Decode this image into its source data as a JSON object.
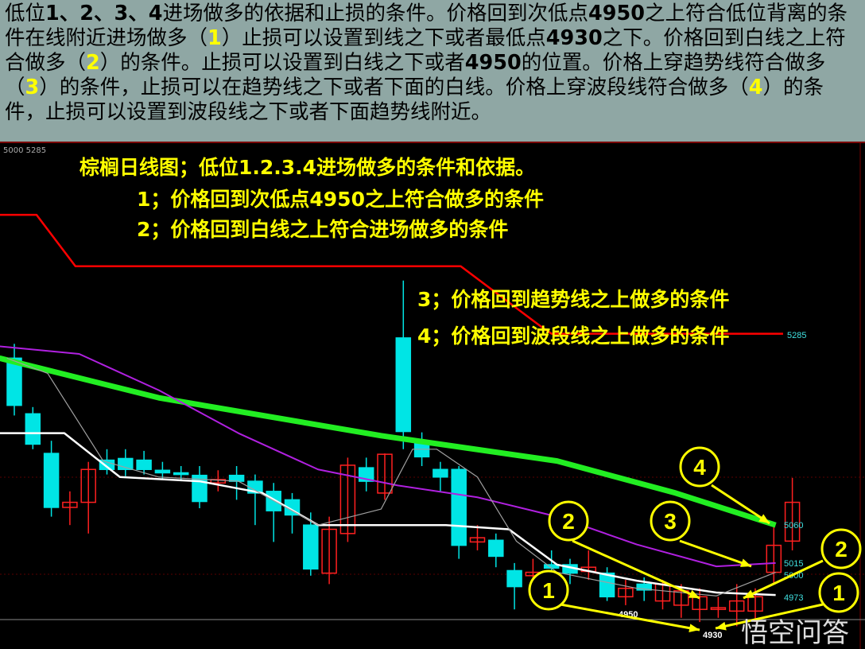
{
  "header": {
    "segments": [
      {
        "t": "低位"
      },
      {
        "t": "1、2、3、4",
        "b": 1
      },
      {
        "t": "进场做多的依据和止损的条件。价格回到次低点"
      },
      {
        "t": "4950",
        "b": 1
      },
      {
        "t": "之上符合低位背离的条件在线附近进场做多（"
      },
      {
        "t": "1",
        "h": 1
      },
      {
        "t": "）止损可以设置到线之下或者最低点"
      },
      {
        "t": "4930",
        "b": 1
      },
      {
        "t": "之下。价格回到白线之上符合做多（"
      },
      {
        "t": "2",
        "h": 1
      },
      {
        "t": "）的条件。止损可以设置到白线之下或者"
      },
      {
        "t": "4950",
        "b": 1
      },
      {
        "t": "的位置。价格上穿趋势线符合做多（"
      },
      {
        "t": "3",
        "h": 1
      },
      {
        "t": "）的条件，止损可以在趋势线之下或者下面的白线。价格上穿波段线符合做多（"
      },
      {
        "t": "4",
        "h": 1
      },
      {
        "t": "）的条件，止损可以设置到波段线之下或者下面趋势线附近。"
      }
    ]
  },
  "legend": "5000 5285",
  "annotations": {
    "title": "棕榈日线图；低位1.2.3.4进场做多的条件和依据。",
    "line1": "1；价格回到次低点4950之上符合做多的条件",
    "line2": "2；价格回到白线之上符合进场做多的条件",
    "line3": "3；价格回到趋势线之上做多的条件",
    "line4": "4；价格回到波段线之上做多的条件"
  },
  "watermark": "悟空问答",
  "chart_data": {
    "type": "candlestick",
    "ylim": [
      4913,
      5513
    ],
    "colors": {
      "up": "#ff2020",
      "down": "#00e5e5",
      "band_line": "#ff0000",
      "trend_line": "#22ee22",
      "purple_line": "#b020e0",
      "white_line": "#ffffff",
      "gray_line": "#a0a0a0",
      "annotation": "#ffff00"
    },
    "candles": [
      [
        5258,
        5275,
        5190,
        5202
      ],
      [
        5192,
        5200,
        5150,
        5156
      ],
      [
        5145,
        5160,
        5070,
        5081
      ],
      [
        5081,
        5100,
        5060,
        5087
      ],
      [
        5087,
        5135,
        5050,
        5126
      ],
      [
        5137,
        5150,
        5120,
        5126
      ],
      [
        5139,
        5150,
        5118,
        5126
      ],
      [
        5137,
        5148,
        5120,
        5126
      ],
      [
        5125,
        5135,
        5115,
        5122
      ],
      [
        5122,
        5130,
        5112,
        5120
      ],
      [
        5119,
        5130,
        5080,
        5088
      ],
      [
        5110,
        5125,
        5100,
        5114
      ],
      [
        5119,
        5130,
        5090,
        5112
      ],
      [
        5112,
        5120,
        5060,
        5098
      ],
      [
        5100,
        5110,
        5040,
        5077
      ],
      [
        5090,
        5098,
        5050,
        5072
      ],
      [
        5060,
        5075,
        5000,
        5008
      ],
      [
        5003,
        5070,
        4990,
        5055
      ],
      [
        5050,
        5140,
        5040,
        5131
      ],
      [
        5128,
        5140,
        5100,
        5112
      ],
      [
        5098,
        5145,
        5090,
        5144
      ],
      [
        5282,
        5350,
        5150,
        5171
      ],
      [
        5158,
        5170,
        5130,
        5141
      ],
      [
        5126,
        5135,
        5100,
        5117
      ],
      [
        5126,
        5130,
        5020,
        5036
      ],
      [
        5040,
        5060,
        5030,
        5045
      ],
      [
        5042,
        5050,
        5010,
        5023
      ],
      [
        5006,
        5015,
        4960,
        4987
      ],
      [
        5000,
        5020,
        4985,
        5004
      ],
      [
        5013,
        5030,
        5000,
        5009
      ],
      [
        5013,
        5020,
        4990,
        5003
      ],
      [
        5005,
        5030,
        4995,
        5010
      ],
      [
        5003,
        5010,
        4970,
        4975
      ],
      [
        4975,
        4995,
        4965,
        4985
      ],
      [
        4990,
        4998,
        4970,
        4983
      ],
      [
        4970,
        4995,
        4960,
        4990
      ],
      [
        4965,
        4990,
        4950,
        4982
      ],
      [
        4960,
        4985,
        4945,
        4975
      ],
      [
        4960,
        4975,
        4950,
        4962
      ],
      [
        4958,
        4990,
        4940,
        4970
      ],
      [
        4958,
        4985,
        4945,
        4975
      ],
      [
        5004,
        5060,
        4990,
        5036
      ],
      [
        5041,
        5116,
        5030,
        5087
      ]
    ],
    "lines": {
      "band_line": [
        [
          0.2,
          5428
        ],
        [
          2.2,
          5428
        ],
        [
          4.3,
          5367
        ],
        [
          25.1,
          5367
        ],
        [
          29.4,
          5296
        ],
        [
          30,
          5287
        ],
        [
          42.5,
          5287
        ]
      ],
      "trend_line": [
        [
          0.2,
          5258
        ],
        [
          8.8,
          5211
        ],
        [
          20.8,
          5166
        ],
        [
          30.3,
          5136
        ],
        [
          36.7,
          5098
        ],
        [
          42.1,
          5060
        ]
      ],
      "purple_line": [
        [
          0.2,
          5272
        ],
        [
          4.5,
          5263
        ],
        [
          8.8,
          5220
        ],
        [
          13.1,
          5169
        ],
        [
          17.4,
          5126
        ],
        [
          21.7,
          5107
        ],
        [
          26,
          5093
        ],
        [
          30.3,
          5070
        ],
        [
          34.6,
          5037
        ],
        [
          38.9,
          5011
        ],
        [
          42.1,
          5015
        ]
      ],
      "white_line": [
        [
          0.2,
          5169
        ],
        [
          3.7,
          5169
        ],
        [
          6.7,
          5117
        ],
        [
          11,
          5112
        ],
        [
          14.4,
          5098
        ],
        [
          17.4,
          5060
        ],
        [
          24.3,
          5060
        ],
        [
          27.7,
          5055
        ],
        [
          30.3,
          5013
        ],
        [
          34.6,
          4994
        ],
        [
          38.9,
          4980
        ],
        [
          42.1,
          4977
        ]
      ],
      "gray_line": [
        [
          0.6,
          5258
        ],
        [
          2.8,
          5240
        ],
        [
          5.8,
          5136
        ],
        [
          8.8,
          5117
        ],
        [
          13.1,
          5112
        ],
        [
          17.4,
          5060
        ],
        [
          20.8,
          5079
        ],
        [
          22.5,
          5150
        ],
        [
          23.8,
          5150
        ],
        [
          26,
          5117
        ],
        [
          28.1,
          5041
        ],
        [
          30.3,
          5004
        ],
        [
          34.6,
          4985
        ],
        [
          38.9,
          4976
        ],
        [
          42.1,
          5004
        ]
      ]
    },
    "price_labels": [
      {
        "value": "5285",
        "color": "#40e0e0"
      },
      {
        "value": "5060",
        "color": "#40e0e0"
      },
      {
        "value": "5015",
        "color": "#40e0e0"
      },
      {
        "value": "5000",
        "color": "#40e0e0"
      },
      {
        "value": "4973",
        "color": "#40e0e0"
      },
      {
        "value": "4950",
        "color": "#ffffff"
      },
      {
        "value": "4930",
        "color": "#ffffff"
      }
    ],
    "markers": [
      "1",
      "2",
      "3",
      "4",
      "2",
      "1"
    ]
  }
}
